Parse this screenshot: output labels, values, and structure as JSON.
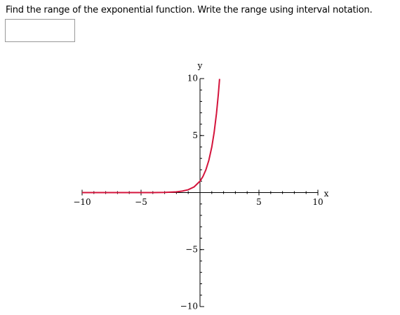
{
  "question": {
    "text": "Find the range of the exponential function. Write the range using interval notation."
  },
  "chart_data": {
    "type": "line",
    "xlabel": "x",
    "ylabel": "y",
    "xlim": [
      -10,
      10
    ],
    "ylim": [
      -10,
      10
    ],
    "xticks": [
      {
        "value": -10,
        "label": "−10"
      },
      {
        "value": -5,
        "label": "−5"
      },
      5,
      10
    ],
    "yticks": [
      {
        "value": -10,
        "label": "−10"
      },
      {
        "value": -5,
        "label": "−5"
      },
      5,
      10
    ],
    "minor_ticks": [
      -10,
      -9,
      -8,
      -7,
      -6,
      -5,
      -4,
      -3,
      -2,
      -1,
      1,
      2,
      3,
      4,
      5,
      6,
      7,
      8,
      9,
      10
    ],
    "series": [
      {
        "color": "#d4143c",
        "x": [
          -10,
          -8,
          -6,
          -4,
          -3,
          -2,
          -1.5,
          -1,
          -0.5,
          0,
          0.25,
          0.5,
          0.75,
          1,
          1.2,
          1.4,
          1.55,
          1.66
        ],
        "values": [
          0,
          0,
          0,
          0.004,
          0.016,
          0.06,
          0.13,
          0.25,
          0.5,
          1,
          1.41,
          2,
          2.83,
          4,
          5.28,
          6.96,
          8.57,
          9.97
        ]
      }
    ]
  }
}
